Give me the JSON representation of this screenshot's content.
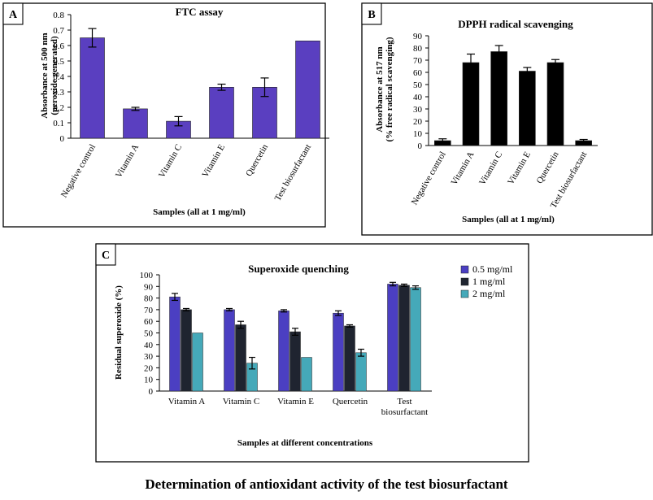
{
  "caption": "Determination of antioxidant activity of the test biosurfactant",
  "colors": {
    "ftc_bar": "#5a3fc0",
    "dpph_bar": "#000000",
    "series_1": "#4b3fc2",
    "series_2": "#1f2430",
    "series_3": "#45a9b9"
  },
  "chart_data": [
    {
      "panel": "A",
      "type": "bar",
      "title": "FTC assay",
      "ylabel": "Absorbance at 500 nm (peroxide generated)",
      "ylabel_lines": [
        "Absorbance at 500 nm",
        "(peroxide generated)"
      ],
      "xlabel": "Samples (all at 1 mg/ml)",
      "categories": [
        "Negative control",
        "Vitamin A",
        "Vitamin C",
        "Vitamin E",
        "Quercetin",
        "Test biosurfactant"
      ],
      "values": [
        0.65,
        0.19,
        0.11,
        0.33,
        0.33,
        0.63
      ],
      "errors": [
        0.06,
        0.01,
        0.03,
        0.02,
        0.06,
        0.0
      ],
      "ylim": [
        0,
        0.8
      ],
      "yticks": [
        "0",
        "0.1",
        "0.2",
        "0.3",
        "0.4",
        "0.5",
        "0.6",
        "0.7",
        "0.8"
      ]
    },
    {
      "panel": "B",
      "type": "bar",
      "title": "DPPH radical scavenging",
      "ylabel": "Absorbance at 517 nm (% free radical scavenging)",
      "ylabel_lines": [
        "Absorbance at 517 nm",
        "(% free radical scavenging)"
      ],
      "xlabel": "Samples (all at 1 mg/ml)",
      "categories": [
        "Negative control",
        "Vitamin A",
        "Vitamin C",
        "Vitamin E",
        "Quercetin",
        "Test biosurfactant"
      ],
      "values": [
        4,
        68,
        77,
        61,
        68,
        4
      ],
      "errors": [
        1.5,
        7,
        5,
        3,
        2.5,
        1
      ],
      "ylim": [
        0,
        90
      ],
      "yticks": [
        "0",
        "10",
        "20",
        "30",
        "40",
        "50",
        "60",
        "70",
        "80",
        "90"
      ]
    },
    {
      "panel": "C",
      "type": "bar",
      "title": "Superoxide quenching",
      "ylabel": "Residual superoxide (%)",
      "xlabel": "Samples at different concentrations",
      "categories": [
        "Vitamin A",
        "Vitamin C",
        "Vitamin E",
        "Quercetin",
        "Test biosurfactant"
      ],
      "category_lines": [
        [
          "Vitamin A"
        ],
        [
          "Vitamin C"
        ],
        [
          "Vitamin E"
        ],
        [
          "Quercetin"
        ],
        [
          "Test",
          "biosurfactant"
        ]
      ],
      "series": [
        {
          "name": "0.5 mg/ml",
          "values": [
            81,
            70,
            69,
            67,
            92
          ],
          "errors": [
            3,
            1,
            1,
            2,
            1.5
          ]
        },
        {
          "name": "1 mg/ml",
          "values": [
            70,
            57,
            51,
            56,
            91
          ],
          "errors": [
            1,
            3,
            3,
            1,
            1
          ]
        },
        {
          "name": "2 mg/ml",
          "values": [
            50,
            24,
            29,
            33,
            89
          ],
          "errors": [
            0,
            5,
            0,
            3,
            1.5
          ]
        }
      ],
      "ylim": [
        0,
        100
      ],
      "yticks": [
        "0",
        "10",
        "20",
        "30",
        "40",
        "50",
        "60",
        "70",
        "80",
        "90",
        "100"
      ],
      "legend_position": "right"
    }
  ]
}
